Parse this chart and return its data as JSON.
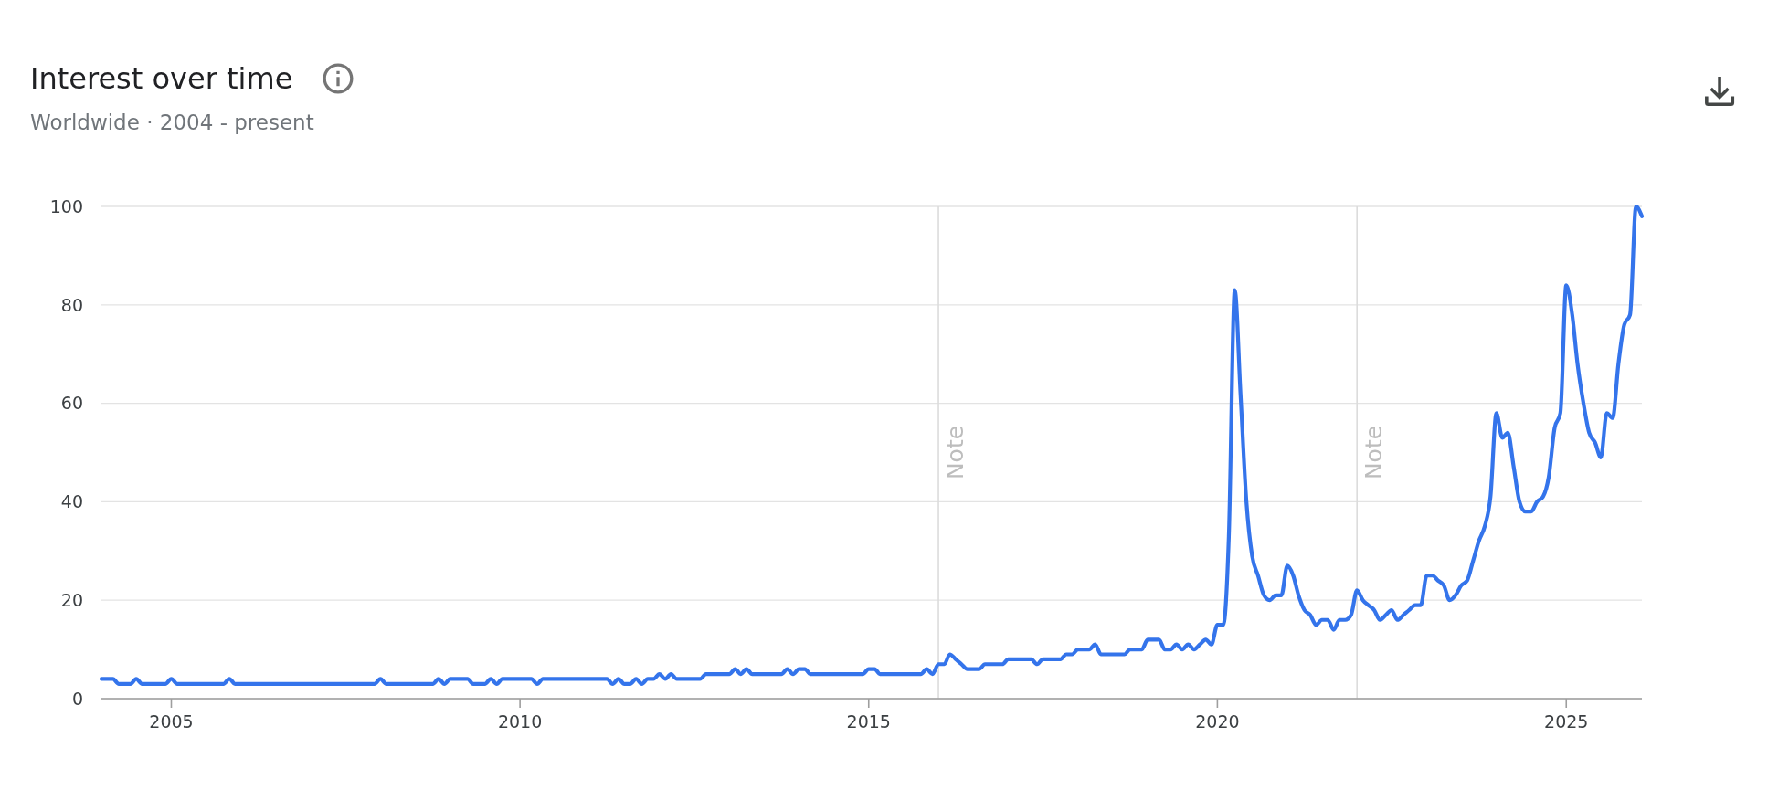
{
  "chart_data": {
    "type": "line",
    "title": "Interest over time",
    "subtitle": "Worldwide · 2004 - present",
    "x": [
      "2004-01",
      "2004-03",
      "2004-04",
      "2004-06",
      "2004-07",
      "2004-08",
      "2004-12",
      "2005-01",
      "2005-02",
      "2005-10",
      "2005-11",
      "2005-12",
      "2007-12",
      "2008-01",
      "2008-02",
      "2008-10",
      "2008-11",
      "2008-12",
      "2009-01",
      "2009-04",
      "2009-05",
      "2009-07",
      "2009-08",
      "2009-09",
      "2009-10",
      "2010-03",
      "2010-04",
      "2010-05",
      "2011-04",
      "2011-05",
      "2011-06",
      "2011-07",
      "2011-08",
      "2011-09",
      "2011-10",
      "2011-11",
      "2011-12",
      "2012-01",
      "2012-02",
      "2012-03",
      "2012-04",
      "2012-08",
      "2012-09",
      "2013-01",
      "2013-02",
      "2013-03",
      "2013-04",
      "2013-05",
      "2013-10",
      "2013-11",
      "2013-12",
      "2014-01",
      "2014-02",
      "2014-03",
      "2014-12",
      "2015-01",
      "2015-02",
      "2015-03",
      "2015-10",
      "2015-11",
      "2015-12",
      "2016-01",
      "2016-02",
      "2016-03",
      "2016-04",
      "2016-05",
      "2016-06",
      "2016-08",
      "2016-09",
      "2016-12",
      "2017-01",
      "2017-05",
      "2017-06",
      "2017-07",
      "2017-10",
      "2017-11",
      "2017-12",
      "2018-01",
      "2018-03",
      "2018-04",
      "2018-05",
      "2018-09",
      "2018-10",
      "2018-12",
      "2019-01",
      "2019-03",
      "2019-04",
      "2019-05",
      "2019-06",
      "2019-07",
      "2019-08",
      "2019-09",
      "2019-10",
      "2019-11",
      "2019-12",
      "2020-01",
      "2020-02",
      "2020-03",
      "2020-04",
      "2020-05",
      "2020-06",
      "2020-07",
      "2020-08",
      "2020-09",
      "2020-10",
      "2020-11",
      "2020-12",
      "2021-01",
      "2021-02",
      "2021-03",
      "2021-04",
      "2021-05",
      "2021-06",
      "2021-07",
      "2021-08",
      "2021-09",
      "2021-10",
      "2021-11",
      "2021-12",
      "2022-01",
      "2022-02",
      "2022-03",
      "2022-04",
      "2022-05",
      "2022-06",
      "2022-07",
      "2022-08",
      "2022-09",
      "2022-10",
      "2022-11",
      "2022-12",
      "2023-01",
      "2023-02",
      "2023-03",
      "2023-04",
      "2023-05",
      "2023-06",
      "2023-07",
      "2023-08",
      "2023-09",
      "2023-10",
      "2023-11",
      "2023-12",
      "2024-01",
      "2024-02",
      "2024-03",
      "2024-04",
      "2024-05",
      "2024-06",
      "2024-07",
      "2024-08",
      "2024-09",
      "2024-10",
      "2024-11",
      "2024-12",
      "2025-01",
      "2025-02",
      "2025-03",
      "2025-04",
      "2025-05",
      "2025-06",
      "2025-07",
      "2025-08",
      "2025-09",
      "2025-10",
      "2025-11",
      "2025-12",
      "2026-01",
      "2026-02"
    ],
    "values": [
      4,
      4,
      3,
      3,
      4,
      3,
      3,
      4,
      3,
      3,
      4,
      3,
      3,
      4,
      3,
      3,
      4,
      3,
      4,
      4,
      3,
      3,
      4,
      3,
      4,
      4,
      3,
      4,
      4,
      3,
      4,
      3,
      3,
      4,
      3,
      4,
      4,
      5,
      4,
      5,
      4,
      4,
      5,
      5,
      6,
      5,
      6,
      5,
      5,
      6,
      5,
      6,
      6,
      5,
      5,
      6,
      6,
      5,
      5,
      6,
      5,
      7,
      7,
      9,
      8,
      7,
      6,
      6,
      7,
      7,
      8,
      8,
      7,
      8,
      8,
      9,
      9,
      10,
      10,
      11,
      9,
      9,
      10,
      10,
      12,
      12,
      10,
      10,
      11,
      10,
      11,
      10,
      11,
      12,
      11,
      15,
      15,
      33,
      83,
      62,
      40,
      29,
      25,
      21,
      20,
      21,
      21,
      27,
      25,
      21,
      18,
      17,
      15,
      16,
      16,
      14,
      16,
      16,
      17,
      22,
      20,
      19,
      18,
      16,
      17,
      18,
      16,
      17,
      18,
      19,
      19,
      25,
      25,
      24,
      23,
      20,
      21,
      23,
      24,
      28,
      32,
      35,
      41,
      58,
      53,
      54,
      47,
      40,
      38,
      38,
      40,
      41,
      45,
      55,
      58,
      84,
      78,
      68,
      60,
      54,
      52,
      49,
      58,
      57,
      68,
      76,
      78,
      100,
      98
    ],
    "color": "#3474eb",
    "xlim": [
      "2004-01",
      "2026-02"
    ],
    "xticks": [
      "2005",
      "2010",
      "2015",
      "2020",
      "2025"
    ],
    "ylim": [
      0,
      100
    ],
    "yticks": [
      0,
      20,
      40,
      60,
      80,
      100
    ],
    "grid": "y",
    "ref_lines": [
      {
        "axis": "x",
        "value": "2016-01",
        "label": "Note"
      },
      {
        "axis": "x",
        "value": "2022-01",
        "label": "Note"
      }
    ]
  }
}
